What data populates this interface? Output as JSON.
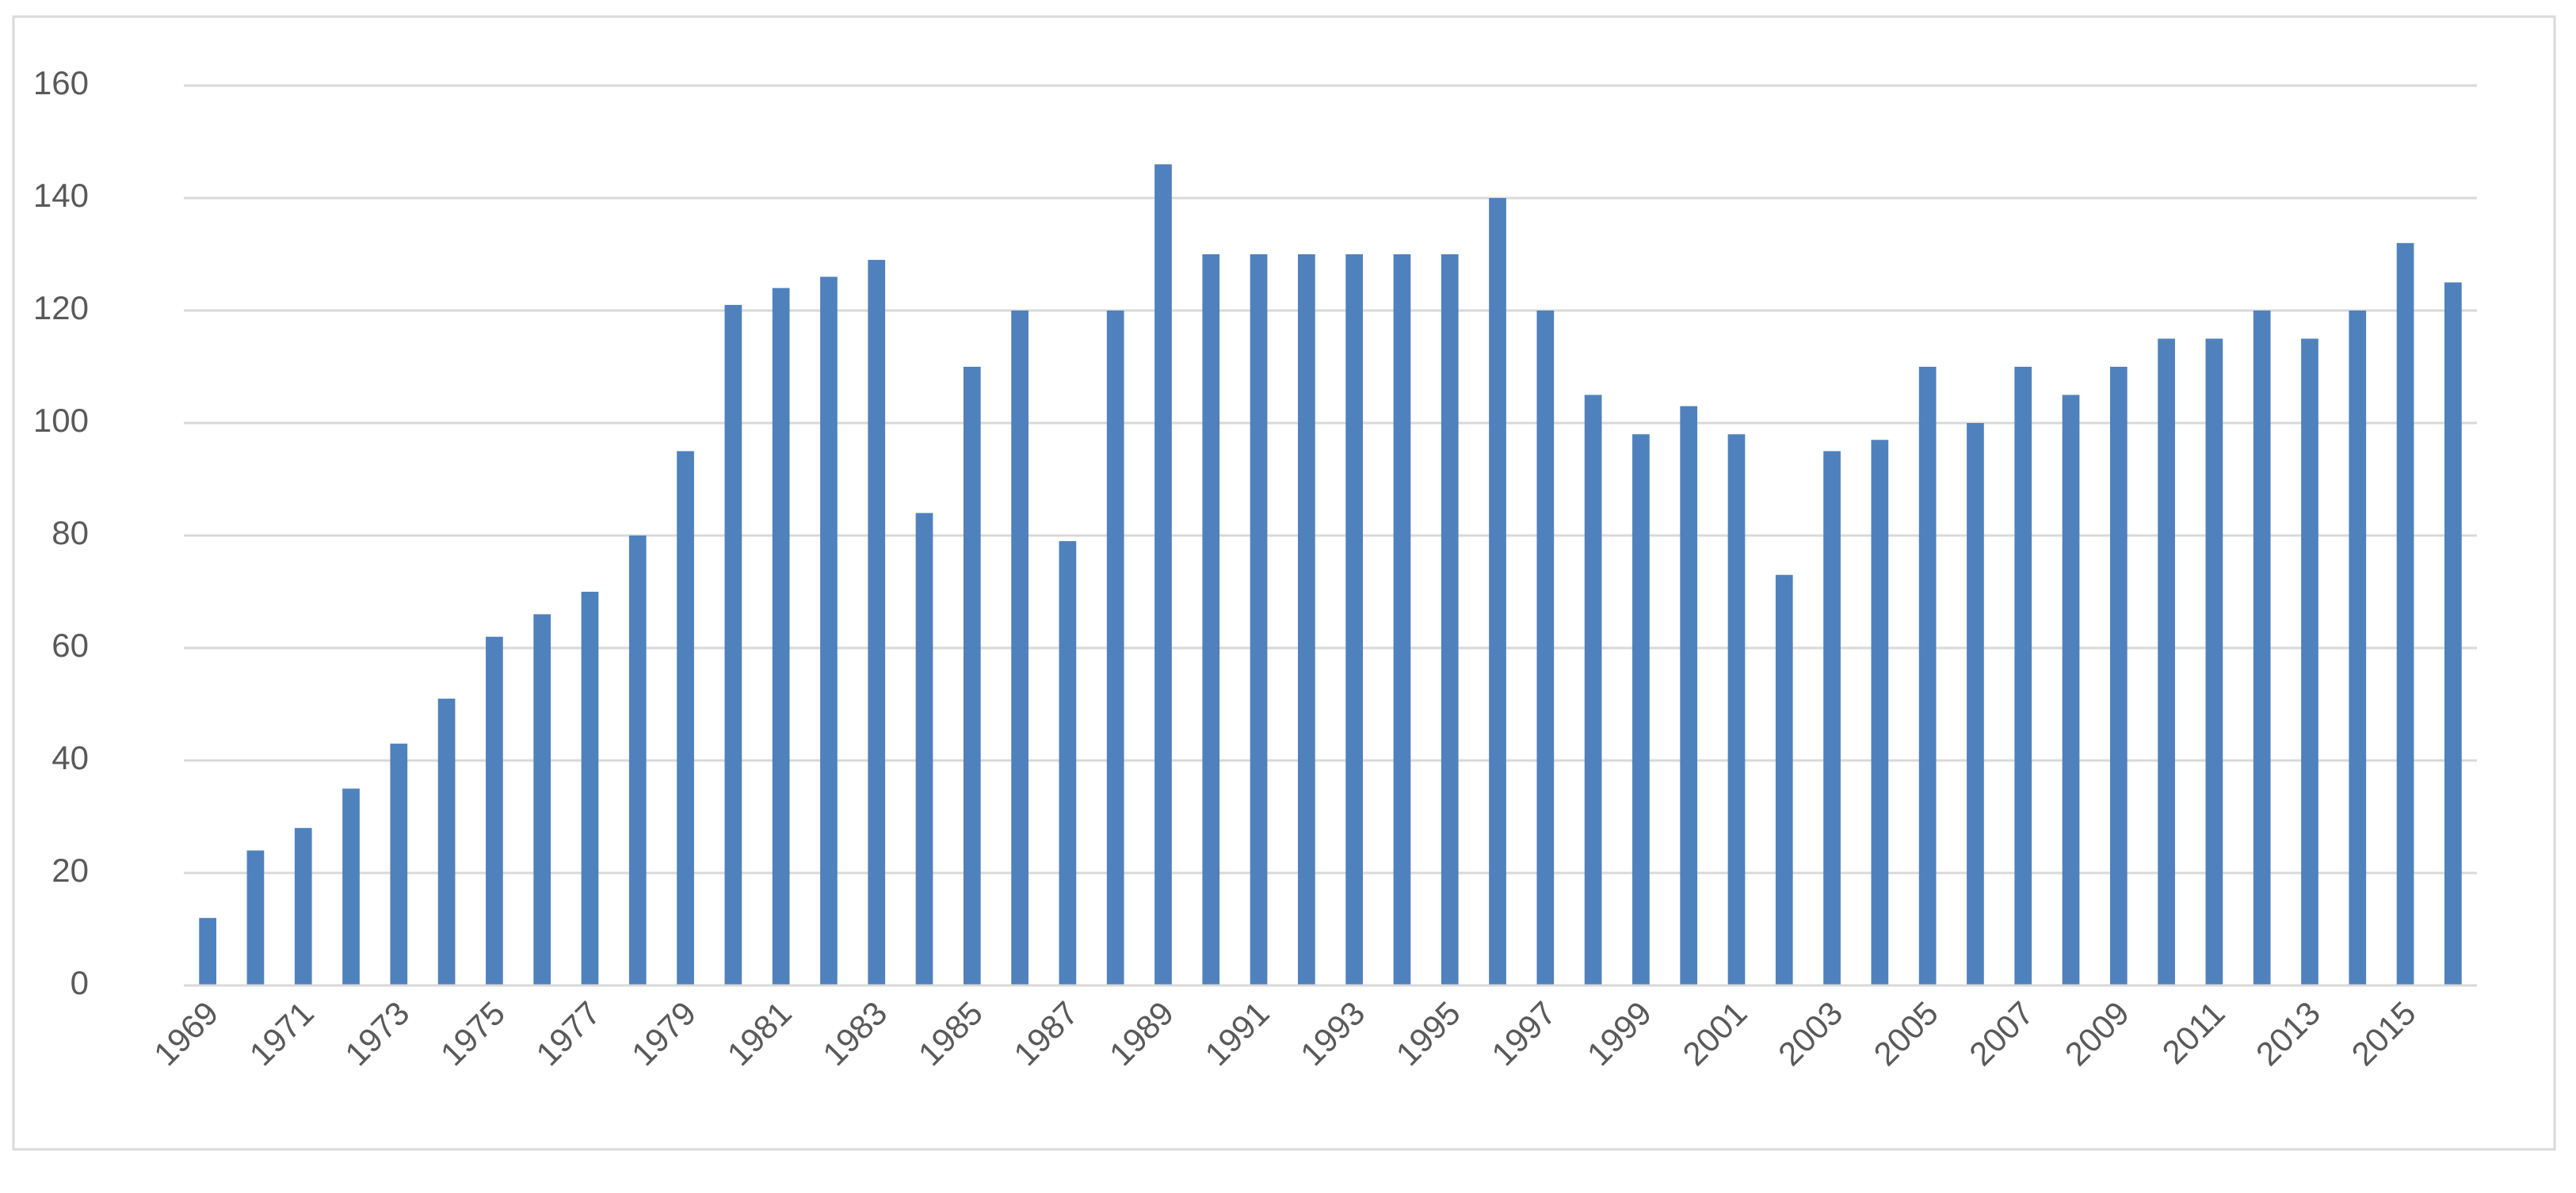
{
  "chart_data": {
    "type": "bar",
    "categories": [
      "1969",
      null,
      "1971",
      null,
      "1973",
      null,
      "1975",
      null,
      "1977",
      null,
      "1979",
      null,
      "1981",
      null,
      "1983",
      null,
      "1985",
      null,
      "1987",
      null,
      "1989",
      null,
      "1991",
      null,
      "1993",
      null,
      "1995",
      null,
      "1997",
      null,
      "1999",
      null,
      "2001",
      null,
      "2003",
      null,
      "2005",
      null,
      "2007",
      null,
      "2009",
      null,
      "2011",
      null,
      "2013",
      null,
      "2015",
      null
    ],
    "values": [
      12,
      24,
      28,
      35,
      43,
      51,
      62,
      66,
      70,
      80,
      95,
      121,
      124,
      126,
      129,
      84,
      110,
      120,
      79,
      120,
      146,
      130,
      130,
      130,
      130,
      130,
      130,
      140,
      120,
      105,
      98,
      103,
      98,
      73,
      95,
      97,
      110,
      100,
      110,
      105,
      110,
      115,
      115,
      120,
      115,
      120,
      132,
      125
    ],
    "color": "#4f81bd",
    "ylim": [
      0,
      160
    ],
    "yticks": [
      0,
      20,
      40,
      60,
      80,
      100,
      120,
      140,
      160
    ],
    "grid": true
  }
}
